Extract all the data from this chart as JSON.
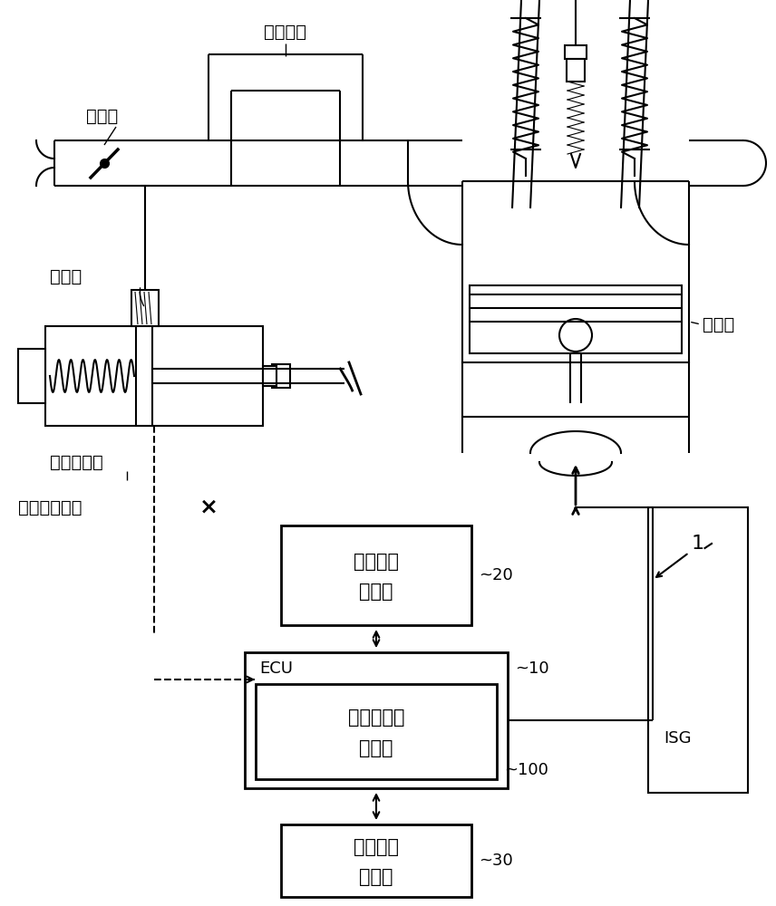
{
  "bg_color": "#ffffff",
  "lc": "#000000",
  "lw": 1.5,
  "lw2": 2.0,
  "figsize": [
    8.56,
    10.0
  ],
  "dpi": 100,
  "labels": {
    "jieqimen": "节气门",
    "jinqiqi": "进气歧管",
    "danxiangfa": "单向阀",
    "fadongji": "发动机",
    "zhidong": "制动助力器",
    "chuanganqi": "助力器传感器",
    "x_mark": "×",
    "ecu_label": "ECU",
    "box1_line1": "行驶信息",
    "box1_line2": "检测器",
    "box2_line1": "助力器负压",
    "box2_line2": "预测器",
    "box3_line1": "空气调节",
    "box3_line2": "控制器",
    "num1": "1",
    "num10": "~10",
    "num20": "~20",
    "num30": "~30",
    "num100": "~100",
    "isg": "ISG"
  }
}
